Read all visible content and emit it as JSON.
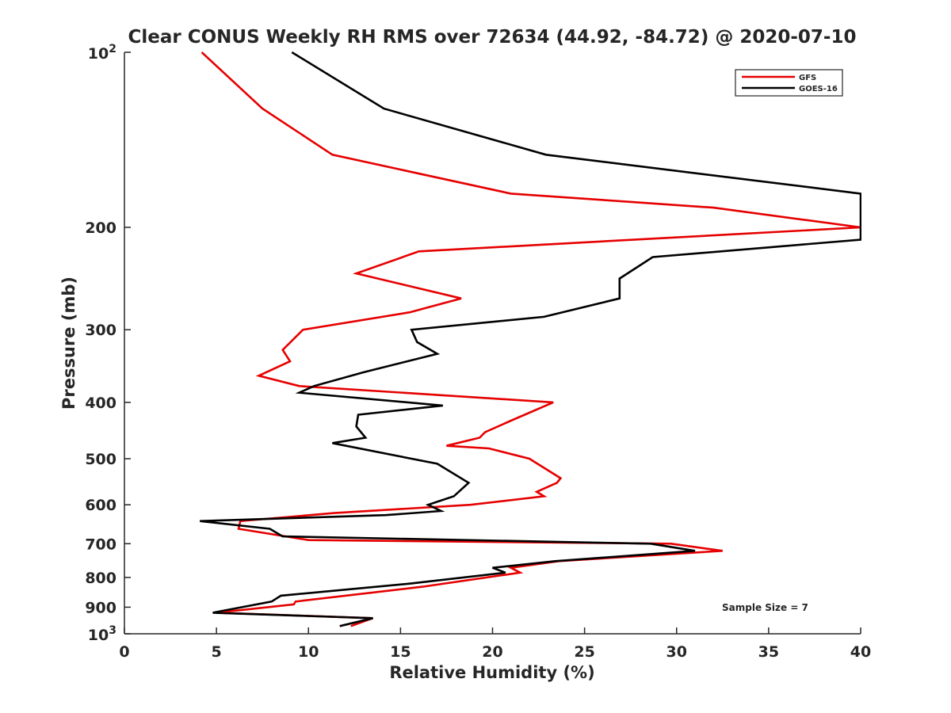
{
  "chart_data": {
    "type": "line",
    "title": "Clear CONUS Weekly RH RMS over 72634 (44.92, -84.72) @ 2020-07-10",
    "xlabel": "Relative Humidity (%)",
    "ylabel": "Pressure (mb)",
    "xlim": [
      0,
      40
    ],
    "ylim": [
      100,
      1000
    ],
    "yscale": "log",
    "yreversed": true,
    "x_ticks": [
      0,
      5,
      10,
      15,
      20,
      25,
      30,
      35,
      40
    ],
    "x_tick_labels": [
      "0",
      "5",
      "10",
      "15",
      "20",
      "25",
      "30",
      "35",
      "40"
    ],
    "y_ticks": [
      200,
      300,
      400,
      500,
      600,
      700,
      800,
      900
    ],
    "y_tick_labels": [
      "200",
      "300",
      "400",
      "500",
      "600",
      "700",
      "800",
      "900"
    ],
    "y_tick_power_labels": [
      {
        "value": 100,
        "base": "10",
        "exp": "2"
      },
      {
        "value": 1000,
        "base": "10",
        "exp": "3"
      }
    ],
    "legend_position": "top-right",
    "annotation": "Sample Size = 7",
    "series": [
      {
        "name": "GFS",
        "color": "#e60000",
        "points": [
          [
            4.2,
            100
          ],
          [
            7.5,
            125
          ],
          [
            11.3,
            150
          ],
          [
            21,
            175
          ],
          [
            32,
            185
          ],
          [
            40,
            200
          ],
          [
            16,
            220
          ],
          [
            12.6,
            240
          ],
          [
            18.3,
            265
          ],
          [
            15.5,
            280
          ],
          [
            9.7,
            300
          ],
          [
            8.6,
            325
          ],
          [
            9,
            340
          ],
          [
            7.3,
            360
          ],
          [
            9.5,
            375
          ],
          [
            23.3,
            400
          ],
          [
            21,
            430
          ],
          [
            19.6,
            450
          ],
          [
            19.3,
            460
          ],
          [
            17.5,
            475
          ],
          [
            19.8,
            480
          ],
          [
            22,
            500
          ],
          [
            23.7,
            540
          ],
          [
            23.5,
            550
          ],
          [
            22.4,
            570
          ],
          [
            22.8,
            580
          ],
          [
            18.8,
            600
          ],
          [
            11.4,
            620
          ],
          [
            6.3,
            640
          ],
          [
            6.2,
            660
          ],
          [
            10,
            690
          ],
          [
            29.7,
            700
          ],
          [
            32.5,
            720
          ],
          [
            23.6,
            750
          ],
          [
            21,
            770
          ],
          [
            21.5,
            785
          ],
          [
            16.2,
            830
          ],
          [
            9.3,
            880
          ],
          [
            9.2,
            890
          ],
          [
            5,
            920
          ],
          [
            13.5,
            940
          ],
          [
            12.3,
            970
          ]
        ]
      },
      {
        "name": "GOES-16",
        "color": "#000000",
        "points": [
          [
            9.1,
            100
          ],
          [
            14.1,
            125
          ],
          [
            22.9,
            150
          ],
          [
            40,
            175
          ],
          [
            40,
            200
          ],
          [
            40,
            210
          ],
          [
            28.7,
            225
          ],
          [
            26.9,
            245
          ],
          [
            26.9,
            265
          ],
          [
            22.8,
            285
          ],
          [
            15.6,
            300
          ],
          [
            15.9,
            315
          ],
          [
            17,
            330
          ],
          [
            13,
            355
          ],
          [
            10.3,
            375
          ],
          [
            9.5,
            385
          ],
          [
            17.3,
            405
          ],
          [
            12.7,
            420
          ],
          [
            12.6,
            440
          ],
          [
            13.1,
            460
          ],
          [
            11.3,
            470
          ],
          [
            17,
            510
          ],
          [
            18.7,
            550
          ],
          [
            17.9,
            580
          ],
          [
            16.5,
            600
          ],
          [
            17.2,
            615
          ],
          [
            14.2,
            625
          ],
          [
            4.1,
            640
          ],
          [
            7.9,
            660
          ],
          [
            8.6,
            680
          ],
          [
            28.6,
            700
          ],
          [
            31,
            720
          ],
          [
            23.4,
            750
          ],
          [
            20,
            770
          ],
          [
            20.7,
            785
          ],
          [
            15.5,
            820
          ],
          [
            8.5,
            860
          ],
          [
            8,
            880
          ],
          [
            4.8,
            920
          ],
          [
            13.5,
            940
          ],
          [
            11.7,
            970
          ]
        ]
      }
    ]
  }
}
